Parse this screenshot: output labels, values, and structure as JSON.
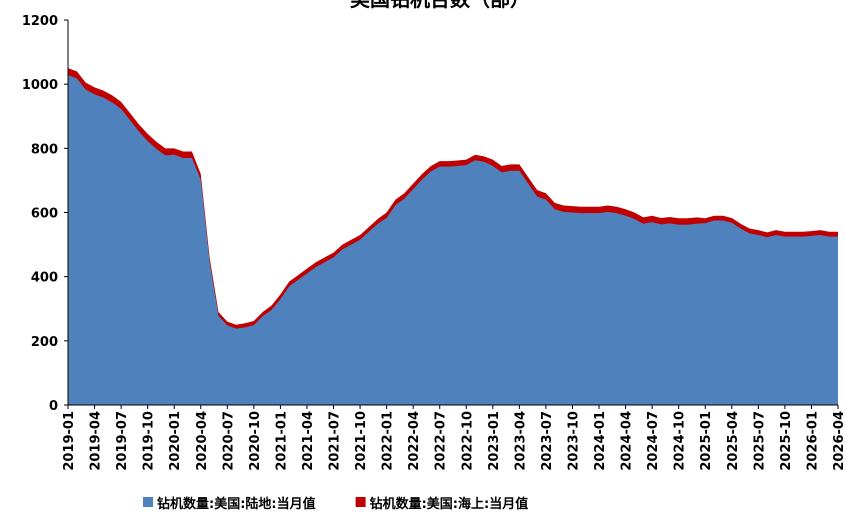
{
  "chart_data": {
    "type": "stacked_area",
    "title": "美国钻机台数（部）",
    "categories": [
      "2019-01",
      null,
      null,
      "2019-04",
      null,
      null,
      "2019-07",
      null,
      null,
      "2019-10",
      null,
      null,
      "2020-01",
      null,
      null,
      "2020-04",
      null,
      null,
      "2020-07",
      null,
      null,
      "2020-10",
      null,
      null,
      "2021-01",
      null,
      null,
      "2021-04",
      null,
      null,
      "2021-07",
      null,
      null,
      "2021-10",
      null,
      null,
      "2022-01",
      null,
      null,
      "2022-04",
      null,
      null,
      "2022-07",
      null,
      null,
      "2022-10",
      null,
      null,
      "2023-01",
      null,
      null,
      "2023-04",
      null,
      null,
      "2023-07",
      null,
      null,
      "2023-10",
      null,
      null,
      "2024-01",
      null,
      null,
      "2024-04",
      null,
      null,
      "2024-07",
      null,
      null,
      "2024-10",
      null,
      null,
      "2025-01",
      null,
      null,
      "2025-04",
      null,
      null,
      "2025-07",
      null,
      null,
      "2025-10",
      null,
      null,
      "2026-01",
      null,
      null,
      "2026-04"
    ],
    "series": [
      {
        "name": "钻机数量:美国:陆地:当月值",
        "color": "#4f81bd",
        "values": [
          1028,
          1018,
          983,
          968,
          958,
          943,
          923,
          888,
          853,
          823,
          798,
          778,
          780,
          770,
          770,
          702,
          446,
          278,
          248,
          238,
          242,
          249,
          277,
          296,
          330,
          370,
          390,
          410,
          430,
          445,
          460,
          485,
          500,
          515,
          540,
          565,
          583,
          623,
          643,
          673,
          703,
          728,
          743,
          743,
          745,
          748,
          763,
          758,
          745,
          725,
          730,
          730,
          690,
          650,
          640,
          610,
          602,
          600,
          598,
          598,
          598,
          602,
          598,
          590,
          580,
          565,
          570,
          563,
          566,
          562,
          562,
          565,
          567,
          575,
          575,
          568,
          550,
          535,
          530,
          523,
          530,
          525,
          525,
          525,
          527,
          530,
          525,
          525
        ]
      },
      {
        "name": "钻机数量:美国:海上:当月值",
        "color": "#c00000",
        "values": [
          22,
          22,
          22,
          22,
          22,
          22,
          22,
          22,
          22,
          22,
          22,
          22,
          20,
          20,
          20,
          18,
          14,
          12,
          12,
          12,
          13,
          13,
          13,
          14,
          15,
          15,
          15,
          15,
          15,
          15,
          15,
          15,
          15,
          15,
          15,
          15,
          17,
          17,
          17,
          17,
          17,
          17,
          17,
          17,
          17,
          17,
          17,
          17,
          20,
          20,
          20,
          20,
          20,
          20,
          20,
          20,
          20,
          20,
          20,
          20,
          20,
          20,
          20,
          20,
          20,
          20,
          20,
          20,
          20,
          20,
          20,
          20,
          15,
          15,
          15,
          15,
          15,
          15,
          15,
          15,
          15,
          15,
          15,
          15,
          15,
          15,
          15,
          15
        ]
      }
    ],
    "ylim": [
      0,
      1200
    ],
    "yticks": [
      0,
      200,
      400,
      600,
      800,
      1000,
      1200
    ]
  }
}
